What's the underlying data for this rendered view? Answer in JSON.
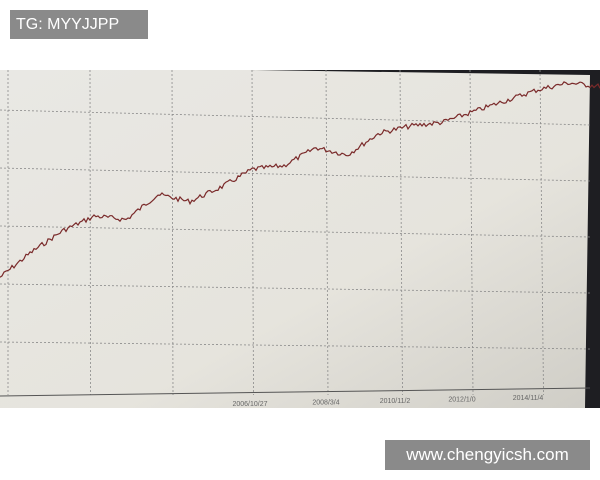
{
  "watermark_top": "TG: MYYJJPP",
  "watermark_bottom": "www.chengyicsh.com",
  "chart_data": {
    "type": "line",
    "title": "",
    "xlabel": "",
    "ylabel": "",
    "x_tick_labels": [
      "2006/10/27",
      "2008/3/4",
      "2010/11/2",
      "2012/1/0",
      "2014/11/4"
    ],
    "series": [
      {
        "values": [
          3,
          10,
          16,
          20,
          19,
          26,
          24,
          28,
          33,
          34,
          39,
          37,
          43,
          45,
          46,
          49,
          52,
          55,
          57,
          56
        ],
        "color": "#7a2a2a"
      }
    ],
    "grid": true,
    "background": "#ecebe6"
  }
}
